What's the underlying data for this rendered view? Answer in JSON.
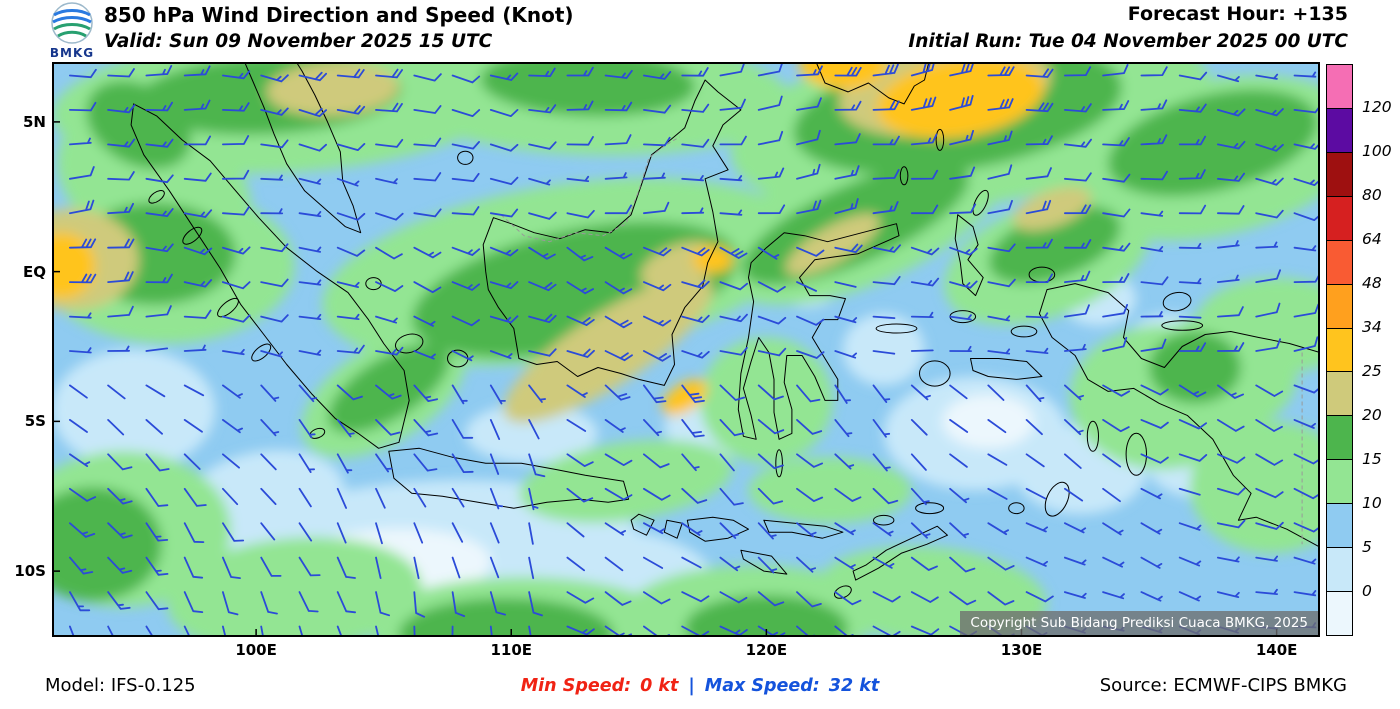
{
  "header": {
    "logo_text": "BMKG",
    "title": "850 hPa Wind Direction and Speed (Knot)",
    "valid": "Valid: Sun 09 November 2025 15 UTC",
    "forecast_hour": "Forecast Hour: +135",
    "initial_run": "Initial Run: Tue 04 November 2025 00 UTC"
  },
  "map": {
    "copyright": "Copyright Sub Bidang Prediksi Cuaca BMKG, 2025",
    "lat_ticks": [
      {
        "label": "5N",
        "lat": 5
      },
      {
        "label": "EQ",
        "lat": 0
      },
      {
        "label": "5S",
        "lat": -5
      },
      {
        "label": "10S",
        "lat": -10
      }
    ],
    "lon_ticks": [
      {
        "label": "100E",
        "lon": 100
      },
      {
        "label": "110E",
        "lon": 110
      },
      {
        "label": "120E",
        "lon": 120
      },
      {
        "label": "130E",
        "lon": 130
      },
      {
        "label": "140E",
        "lon": 140
      }
    ]
  },
  "footer": {
    "model": "Model: IFS-0.125",
    "min_label": "Min Speed:",
    "min_value": "0 kt",
    "divider": "|",
    "max_label": "Max Speed:",
    "max_value": "32 kt",
    "source": "Source: ECMWF-CIPS BMKG"
  },
  "chart_data": {
    "type": "wind-map",
    "parameter": "850 hPa Wind Direction and Speed",
    "unit": "Knot",
    "min_speed_kt": 0,
    "max_speed_kt": 32,
    "projection": {
      "lon_min": 92,
      "lon_max": 141.7,
      "lat_min": -12.2,
      "lat_max": 7
    },
    "colorbar": {
      "boundaries": [
        0,
        5,
        10,
        15,
        20,
        25,
        34,
        48,
        64,
        80,
        100,
        120
      ],
      "colors_bottom_to_top": [
        "#ECF7FD",
        "#C8E8F9",
        "#8FCBF1",
        "#93E593",
        "#4DB54D",
        "#CFCA7B",
        "#FFC41E",
        "#FFA01E",
        "#F95B33",
        "#D62020",
        "#9E1010",
        "#5C0BA2",
        "#F56EB4"
      ]
    },
    "wind": {
      "barb_color": "#2B4BD8",
      "grid_dlon": 1.5,
      "grid_dlat": 1.15
    },
    "speed_regions": [
      {
        "c": [
          106.5,
          -9.4
        ],
        "r": [
          8.5,
          2.4
        ],
        "rot": -4,
        "level": 1
      },
      {
        "c": [
          105.0,
          -9.9
        ],
        "r": [
          4.2,
          1.3
        ],
        "rot": -4,
        "level": 0
      },
      {
        "c": [
          113.5,
          -10.4
        ],
        "r": [
          4.5,
          1.8
        ],
        "rot": 0,
        "level": 1
      },
      {
        "c": [
          110.8,
          -5.4
        ],
        "r": [
          2.6,
          1.0
        ],
        "rot": 0,
        "level": 1
      },
      {
        "c": [
          128.2,
          -5.4
        ],
        "r": [
          3.6,
          1.9
        ],
        "rot": 0,
        "level": 1
      },
      {
        "c": [
          128.7,
          -5.0
        ],
        "r": [
          1.8,
          0.9
        ],
        "rot": 0,
        "level": 0
      },
      {
        "c": [
          124.6,
          -2.6
        ],
        "r": [
          1.6,
          1.2
        ],
        "rot": 0,
        "level": 1
      },
      {
        "c": [
          135.8,
          -2.4
        ],
        "r": [
          1.7,
          1.0
        ],
        "rot": 0,
        "level": 1
      },
      {
        "c": [
          121.6,
          -0.4
        ],
        "r": [
          1.3,
          0.8
        ],
        "rot": 0,
        "level": 1
      },
      {
        "c": [
          137.3,
          -6.4
        ],
        "r": [
          2.4,
          1.2
        ],
        "rot": 0,
        "level": 1
      },
      {
        "c": [
          95.2,
          -4.6
        ],
        "r": [
          3.2,
          2.0
        ],
        "rot": 0,
        "level": 1
      },
      {
        "c": [
          100.3,
          -7.6
        ],
        "r": [
          3.2,
          1.6
        ],
        "rot": -10,
        "level": 1
      },
      {
        "c": [
          132.3,
          -6.6
        ],
        "r": [
          2.6,
          1.5
        ],
        "rot": 0,
        "level": 1
      },
      {
        "c": [
          118.2,
          -5.2
        ],
        "r": [
          2.2,
          1.0
        ],
        "rot": 0,
        "level": 1
      },
      {
        "c": [
          126.5,
          3.4
        ],
        "r": [
          2.0,
          1.4
        ],
        "rot": 0,
        "level": 1
      },
      {
        "c": [
          133.0,
          -0.9
        ],
        "r": [
          1.5,
          0.9
        ],
        "rot": 0,
        "level": 1
      },
      {
        "c": [
          101.0,
          5.6
        ],
        "r": [
          9.0,
          2.3
        ],
        "rot": -3,
        "level": 3
      },
      {
        "c": [
          96.0,
          2.9
        ],
        "r": [
          4.0,
          2.3
        ],
        "rot": 25,
        "level": 3
      },
      {
        "c": [
          113.0,
          5.9
        ],
        "r": [
          8.0,
          2.0
        ],
        "rot": 2,
        "level": 3
      },
      {
        "c": [
          128.0,
          5.1
        ],
        "r": [
          9.5,
          2.9
        ],
        "rot": -9,
        "level": 3
      },
      {
        "c": [
          137.5,
          3.8
        ],
        "r": [
          6.0,
          2.6
        ],
        "rot": -12,
        "level": 3
      },
      {
        "c": [
          112.0,
          0.0
        ],
        "r": [
          9.5,
          2.9
        ],
        "rot": -9,
        "level": 3
      },
      {
        "c": [
          96.5,
          0.2
        ],
        "r": [
          5.0,
          2.6
        ],
        "rot": 0,
        "level": 3
      },
      {
        "c": [
          123.8,
          1.9
        ],
        "r": [
          6.2,
          2.3
        ],
        "rot": -24,
        "level": 3
      },
      {
        "c": [
          131.0,
          0.4
        ],
        "r": [
          4.2,
          1.9
        ],
        "rot": -20,
        "level": 3
      },
      {
        "c": [
          94.8,
          -8.6
        ],
        "r": [
          4.2,
          2.6
        ],
        "rot": 0,
        "level": 3
      },
      {
        "c": [
          101.5,
          -10.8
        ],
        "r": [
          5.0,
          1.9
        ],
        "rot": -5,
        "level": 3
      },
      {
        "c": [
          110.5,
          -11.9
        ],
        "r": [
          6.0,
          1.7
        ],
        "rot": 0,
        "level": 3
      },
      {
        "c": [
          119.5,
          -11.4
        ],
        "r": [
          5.0,
          1.6
        ],
        "rot": 0,
        "level": 3
      },
      {
        "c": [
          126.5,
          -10.8
        ],
        "r": [
          4.5,
          1.6
        ],
        "rot": 5,
        "level": 3
      },
      {
        "c": [
          114.5,
          -7.0
        ],
        "r": [
          4.2,
          1.3
        ],
        "rot": -8,
        "level": 3
      },
      {
        "c": [
          105.0,
          -4.1
        ],
        "r": [
          3.6,
          1.6
        ],
        "rot": -32,
        "level": 3
      },
      {
        "c": [
          120.0,
          -4.3
        ],
        "r": [
          2.6,
          2.1
        ],
        "rot": 0,
        "level": 3
      },
      {
        "c": [
          135.5,
          -4.2
        ],
        "r": [
          3.6,
          2.4
        ],
        "rot": 0,
        "level": 3
      },
      {
        "c": [
          139.8,
          -7.2
        ],
        "r": [
          3.2,
          2.2
        ],
        "rot": 0,
        "level": 3
      },
      {
        "c": [
          140.0,
          -1.8
        ],
        "r": [
          3.2,
          1.6
        ],
        "rot": 0,
        "level": 3
      },
      {
        "c": [
          137.8,
          -3.4
        ],
        "r": [
          3.0,
          2.0
        ],
        "rot": 0,
        "level": 3
      },
      {
        "c": [
          122.5,
          -7.3
        ],
        "r": [
          3.2,
          1.1
        ],
        "rot": 0,
        "level": 3
      },
      {
        "c": [
          100.5,
          5.9
        ],
        "r": [
          5.2,
          1.3
        ],
        "rot": -3,
        "level": 4
      },
      {
        "c": [
          95.4,
          4.9
        ],
        "r": [
          2.2,
          1.3
        ],
        "rot": 30,
        "level": 4
      },
      {
        "c": [
          113.0,
          6.3
        ],
        "r": [
          4.2,
          1.1
        ],
        "rot": 2,
        "level": 4
      },
      {
        "c": [
          127.5,
          5.4
        ],
        "r": [
          6.5,
          2.0
        ],
        "rot": -9,
        "level": 4
      },
      {
        "c": [
          137.5,
          4.3
        ],
        "r": [
          4.2,
          1.6
        ],
        "rot": -14,
        "level": 4
      },
      {
        "c": [
          112.5,
          -0.6
        ],
        "r": [
          6.5,
          2.0
        ],
        "rot": -12,
        "level": 4
      },
      {
        "c": [
          96.0,
          0.6
        ],
        "r": [
          3.2,
          1.7
        ],
        "rot": 0,
        "level": 4
      },
      {
        "c": [
          123.5,
          1.6
        ],
        "r": [
          4.8,
          1.3
        ],
        "rot": -24,
        "level": 4
      },
      {
        "c": [
          93.6,
          -9.1
        ],
        "r": [
          2.7,
          1.9
        ],
        "rot": 0,
        "level": 4
      },
      {
        "c": [
          109.8,
          -12.1
        ],
        "r": [
          4.2,
          1.2
        ],
        "rot": 0,
        "level": 4
      },
      {
        "c": [
          120.0,
          -11.9
        ],
        "r": [
          3.2,
          1.1
        ],
        "rot": 0,
        "level": 4
      },
      {
        "c": [
          105.2,
          -3.9
        ],
        "r": [
          2.7,
          1.0
        ],
        "rot": -32,
        "level": 4
      },
      {
        "c": [
          131.3,
          0.9
        ],
        "r": [
          2.7,
          1.1
        ],
        "rot": -20,
        "level": 4
      },
      {
        "c": [
          136.8,
          -3.2
        ],
        "r": [
          1.8,
          1.2
        ],
        "rot": 0,
        "level": 4
      },
      {
        "c": [
          113.8,
          -2.6
        ],
        "r": [
          4.8,
          1.2
        ],
        "rot": -33,
        "level": 5
      },
      {
        "c": [
          92.8,
          0.4
        ],
        "r": [
          2.6,
          1.7
        ],
        "rot": 0,
        "level": 5
      },
      {
        "c": [
          127.0,
          6.1
        ],
        "r": [
          4.2,
          1.5
        ],
        "rot": -9,
        "level": 5
      },
      {
        "c": [
          103.0,
          6.1
        ],
        "r": [
          2.6,
          0.9
        ],
        "rot": -3,
        "level": 5
      },
      {
        "c": [
          116.6,
          0.2
        ],
        "r": [
          1.6,
          0.7
        ],
        "rot": -20,
        "level": 5
      },
      {
        "c": [
          122.6,
          0.9
        ],
        "r": [
          2.1,
          0.6
        ],
        "rot": -30,
        "level": 5
      },
      {
        "c": [
          131.2,
          2.1
        ],
        "r": [
          1.6,
          0.6
        ],
        "rot": -20,
        "level": 5
      },
      {
        "c": [
          127.6,
          5.8
        ],
        "r": [
          3.3,
          1.3
        ],
        "rot": -9,
        "level": 6
      },
      {
        "c": [
          92.4,
          0.2
        ],
        "r": [
          1.3,
          1.1
        ],
        "rot": 0,
        "level": 6
      },
      {
        "c": [
          116.8,
          -4.2
        ],
        "r": [
          1.0,
          0.45
        ],
        "rot": -33,
        "level": 6
      },
      {
        "c": [
          117.9,
          0.4
        ],
        "r": [
          0.8,
          0.45
        ],
        "rot": 0,
        "level": 6
      },
      {
        "c": [
          123.0,
          6.9
        ],
        "r": [
          1.7,
          0.8
        ],
        "rot": 0,
        "level": 6
      }
    ]
  }
}
